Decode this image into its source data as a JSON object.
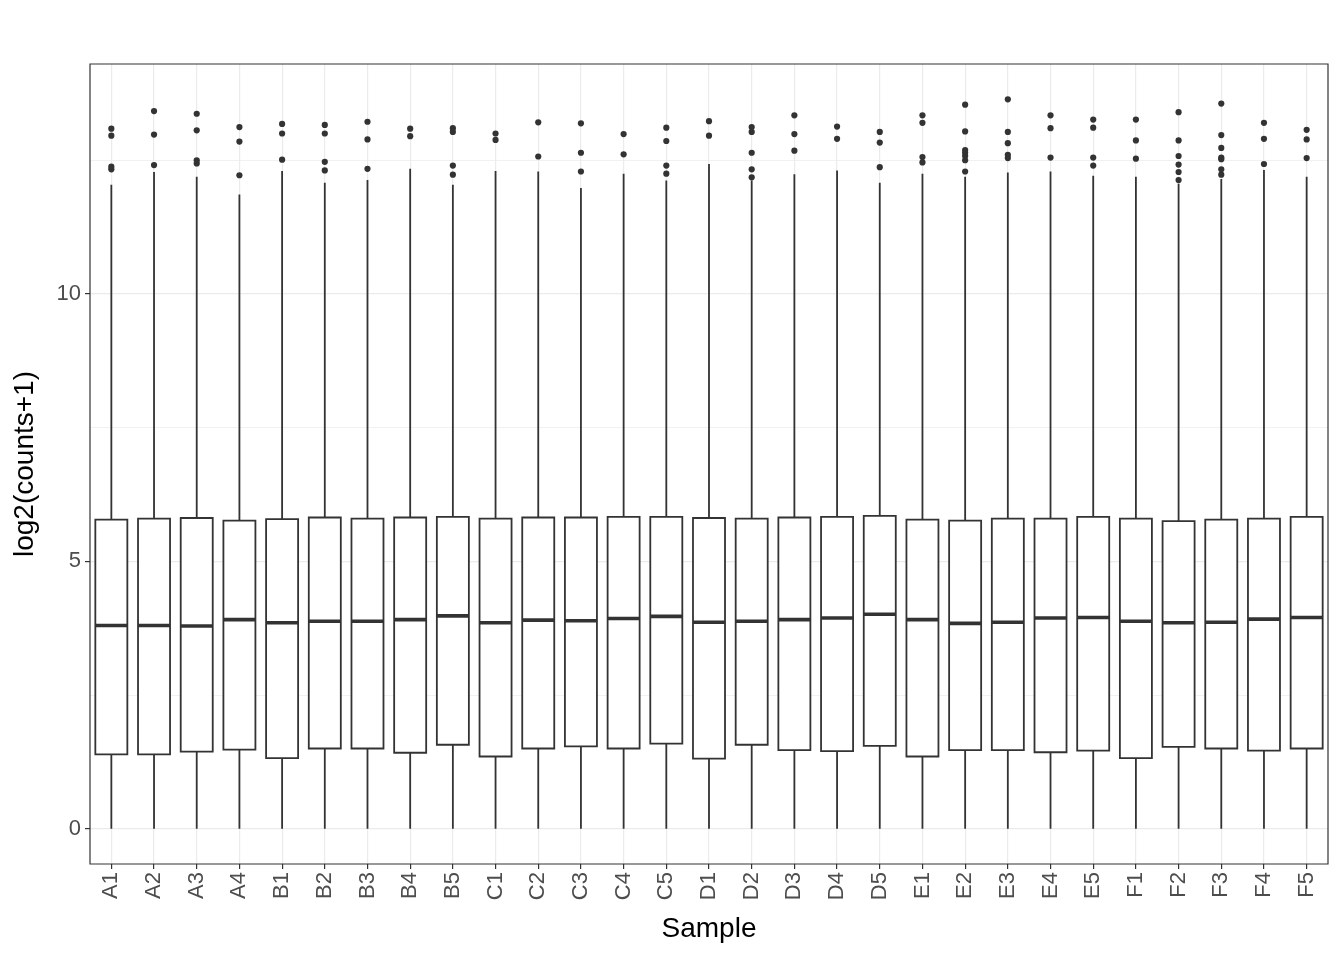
{
  "chart_data": {
    "type": "box",
    "xlabel": "Sample",
    "ylabel": "log2(counts+1)",
    "color": "#333333",
    "grid": true,
    "categories": [
      "A1",
      "A2",
      "A3",
      "A4",
      "B1",
      "B2",
      "B3",
      "B4",
      "B5",
      "C1",
      "C2",
      "C3",
      "C4",
      "C5",
      "D1",
      "D2",
      "D3",
      "D4",
      "D5",
      "E1",
      "E2",
      "E3",
      "E4",
      "E5",
      "F1",
      "F2",
      "F3",
      "F4",
      "F5"
    ],
    "ylim": [
      -0.66,
      14.3
    ],
    "yticks": [
      0,
      {
        "value": 2.5,
        "label": null
      },
      5,
      {
        "value": 7.5,
        "label": null
      },
      10,
      {
        "value": 12.5,
        "label": null
      }
    ],
    "boxes": [
      {
        "low": 0,
        "q1": 1.39,
        "median": 3.8,
        "q3": 5.78,
        "high": 12.04,
        "outliers": [
          12.33,
          12.38,
          12.96,
          13.09
        ]
      },
      {
        "low": 0,
        "q1": 1.39,
        "median": 3.8,
        "q3": 5.8,
        "high": 12.28,
        "outliers": [
          12.41,
          12.98,
          13.42
        ]
      },
      {
        "low": 0,
        "q1": 1.44,
        "median": 3.79,
        "q3": 5.81,
        "high": 12.19,
        "outliers": [
          12.44,
          12.5,
          13.06,
          13.37
        ]
      },
      {
        "low": 0,
        "q1": 1.48,
        "median": 3.91,
        "q3": 5.76,
        "high": 11.86,
        "outliers": [
          12.22,
          12.85,
          13.12
        ]
      },
      {
        "low": 0,
        "q1": 1.32,
        "median": 3.85,
        "q3": 5.79,
        "high": 12.3,
        "outliers": [
          12.51,
          13.0,
          13.18
        ]
      },
      {
        "low": 0,
        "q1": 1.5,
        "median": 3.88,
        "q3": 5.82,
        "high": 12.08,
        "outliers": [
          12.31,
          12.47,
          13.0,
          13.16
        ]
      },
      {
        "low": 0,
        "q1": 1.5,
        "median": 3.88,
        "q3": 5.8,
        "high": 12.13,
        "outliers": [
          12.34,
          12.89,
          13.22
        ]
      },
      {
        "low": 0,
        "q1": 1.42,
        "median": 3.91,
        "q3": 5.82,
        "high": 12.34,
        "outliers": [
          12.95,
          13.09
        ]
      },
      {
        "low": 0,
        "q1": 1.57,
        "median": 3.98,
        "q3": 5.83,
        "high": 12.04,
        "outliers": [
          12.23,
          12.4,
          13.03,
          13.1
        ]
      },
      {
        "low": 0,
        "q1": 1.35,
        "median": 3.85,
        "q3": 5.8,
        "high": 12.3,
        "outliers": [
          12.88,
          13.0
        ]
      },
      {
        "low": 0,
        "q1": 1.5,
        "median": 3.9,
        "q3": 5.82,
        "high": 12.29,
        "outliers": [
          12.57,
          13.21
        ]
      },
      {
        "low": 0,
        "q1": 1.54,
        "median": 3.89,
        "q3": 5.82,
        "high": 11.98,
        "outliers": [
          12.29,
          12.64,
          13.19
        ]
      },
      {
        "low": 0,
        "q1": 1.5,
        "median": 3.93,
        "q3": 5.83,
        "high": 12.25,
        "outliers": [
          12.61,
          12.99
        ]
      },
      {
        "low": 0,
        "q1": 1.59,
        "median": 3.97,
        "q3": 5.83,
        "high": 12.12,
        "outliers": [
          12.25,
          12.4,
          12.86,
          13.11
        ]
      },
      {
        "low": 0,
        "q1": 1.31,
        "median": 3.86,
        "q3": 5.81,
        "high": 12.43,
        "outliers": [
          12.96,
          13.23
        ]
      },
      {
        "low": 0,
        "q1": 1.57,
        "median": 3.88,
        "q3": 5.8,
        "high": 12.12,
        "outliers": [
          12.18,
          12.33,
          12.64,
          13.03,
          13.12
        ]
      },
      {
        "low": 0,
        "q1": 1.47,
        "median": 3.91,
        "q3": 5.82,
        "high": 12.24,
        "outliers": [
          12.68,
          12.99,
          13.34
        ]
      },
      {
        "low": 0,
        "q1": 1.45,
        "median": 3.94,
        "q3": 5.83,
        "high": 12.31,
        "outliers": [
          12.9,
          13.13
        ]
      },
      {
        "low": 0,
        "q1": 1.55,
        "median": 4.01,
        "q3": 5.85,
        "high": 12.08,
        "outliers": [
          12.37,
          12.83,
          13.03
        ]
      },
      {
        "low": 0,
        "q1": 1.35,
        "median": 3.91,
        "q3": 5.78,
        "high": 12.25,
        "outliers": [
          12.46,
          12.56,
          13.2,
          13.34
        ]
      },
      {
        "low": 0,
        "q1": 1.47,
        "median": 3.84,
        "q3": 5.76,
        "high": 12.19,
        "outliers": [
          12.29,
          12.5,
          12.58,
          12.64,
          12.69,
          13.04,
          13.54
        ]
      },
      {
        "low": 0,
        "q1": 1.47,
        "median": 3.86,
        "q3": 5.8,
        "high": 12.27,
        "outliers": [
          12.54,
          12.6,
          12.82,
          13.03,
          13.64
        ]
      },
      {
        "low": 0,
        "q1": 1.43,
        "median": 3.94,
        "q3": 5.8,
        "high": 12.29,
        "outliers": [
          12.55,
          13.1,
          13.34
        ]
      },
      {
        "low": 0,
        "q1": 1.46,
        "median": 3.95,
        "q3": 5.83,
        "high": 12.21,
        "outliers": [
          12.4,
          12.55,
          13.11,
          13.26
        ]
      },
      {
        "low": 0,
        "q1": 1.32,
        "median": 3.88,
        "q3": 5.8,
        "high": 12.19,
        "outliers": [
          12.53,
          12.87,
          13.26
        ]
      },
      {
        "low": 0,
        "q1": 1.53,
        "median": 3.85,
        "q3": 5.75,
        "high": 12.06,
        "outliers": [
          12.13,
          12.28,
          12.42,
          12.58,
          12.87,
          13.4
        ]
      },
      {
        "low": 0,
        "q1": 1.5,
        "median": 3.86,
        "q3": 5.78,
        "high": 12.15,
        "outliers": [
          12.23,
          12.33,
          12.52,
          12.55,
          12.73,
          12.97,
          13.56
        ]
      },
      {
        "low": 0,
        "q1": 1.46,
        "median": 3.92,
        "q3": 5.8,
        "high": 12.32,
        "outliers": [
          12.43,
          12.9,
          13.2
        ]
      },
      {
        "low": 0,
        "q1": 1.5,
        "median": 3.95,
        "q3": 5.83,
        "high": 12.19,
        "outliers": [
          12.54,
          12.89,
          13.07
        ]
      }
    ]
  }
}
